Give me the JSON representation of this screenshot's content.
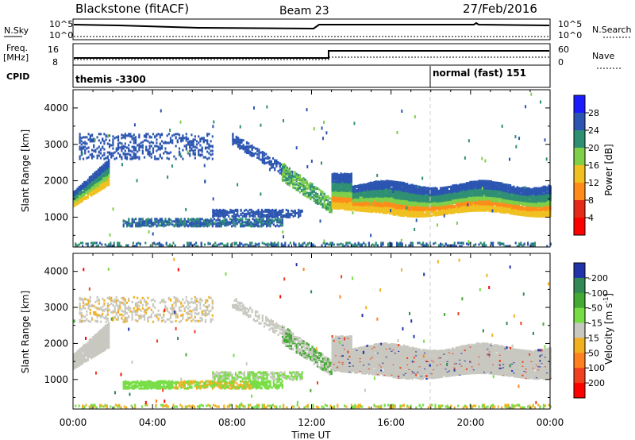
{
  "header": {
    "station": "Blackstone (fitACF)",
    "beam": "Beam 23",
    "date": "27/Feb/2016"
  },
  "summary_panels": {
    "nsky_label": "N.Sky",
    "nsearch_label": "N.Search",
    "log_hi": "10^5",
    "log_lo": "10^0",
    "freq_label_1": "Freq.",
    "freq_label_2": "[MHz]",
    "freq_ticks": [
      "16",
      "8"
    ],
    "nave_label": "Nave",
    "nave_ticks": [
      "60",
      "0"
    ],
    "cpid_label": "CPID",
    "cpid_modes": [
      {
        "label": "themis -3300",
        "start_hour": 0
      },
      {
        "label": "normal (fast) 151",
        "start_hour": 18
      }
    ]
  },
  "chart_data": [
    {
      "type": "heatmap",
      "name": "power",
      "ylabel": "Slant Range [km]",
      "xlim": [
        0,
        24
      ],
      "ylim": [
        180,
        4500
      ],
      "yticks": [
        "1000",
        "2000",
        "3000",
        "4000"
      ],
      "colorbar": {
        "label": "Power [dB]",
        "ticks": [
          "4",
          "8",
          "12",
          "16",
          "20",
          "24",
          "28"
        ],
        "colors": [
          "#1b1bff",
          "#2b55b0",
          "#2f8f73",
          "#7fcf48",
          "#f0c020",
          "#ff8c1a",
          "#e52a1a",
          "#ff0000"
        ]
      }
    },
    {
      "type": "heatmap",
      "name": "velocity",
      "ylabel": "Slant Range [km]",
      "xlim": [
        0,
        24
      ],
      "ylim": [
        180,
        4500
      ],
      "yticks": [
        "1000",
        "2000",
        "3000",
        "4000"
      ],
      "colorbar": {
        "label": "Velocity [m s-1]",
        "ticks": [
          "200",
          "100",
          "50",
          "15",
          "-15",
          "-50",
          "-100",
          "-200"
        ],
        "colors": [
          "#2233aa",
          "#338855",
          "#44aa33",
          "#77dd44",
          "#c8c8c0",
          "#f0b020",
          "#ff8020",
          "#f04020",
          "#ff0000"
        ]
      }
    }
  ],
  "x_axis": {
    "label": "Time UT",
    "ticks": [
      "00:00",
      "04:00",
      "08:00",
      "12:00",
      "16:00",
      "20:00",
      "00:00"
    ]
  }
}
